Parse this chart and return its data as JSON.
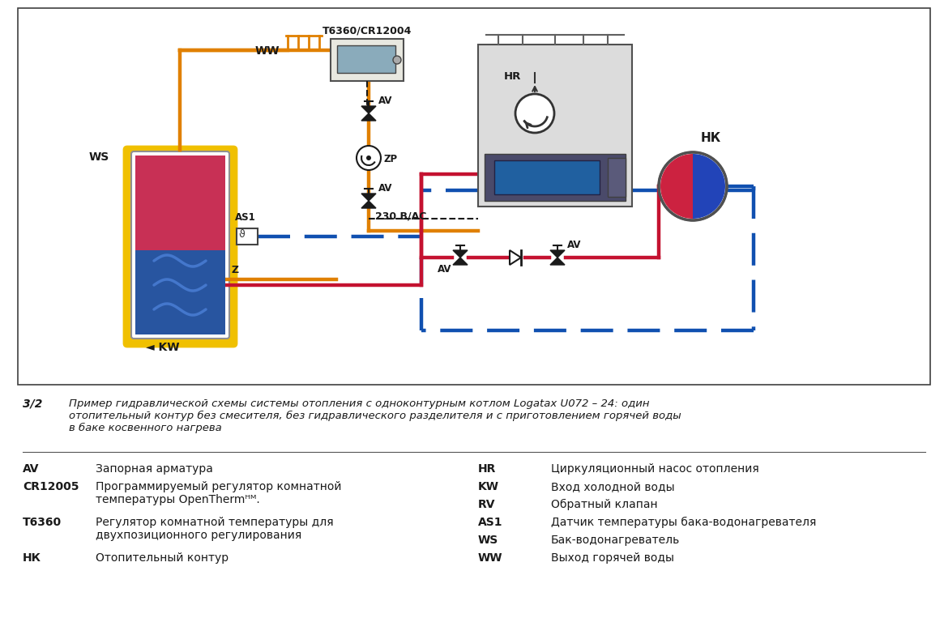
{
  "background_color": "#ffffff",
  "caption_label": "3/2",
  "caption_text": "Пример гидравлической схемы системы отопления с одноконтурным котлом Logatax U072 – 24: один\nотопительный контур без смесителя, без гидравлического разделителя и с приготовлением горячей воды\nв баке косвенного нагрева",
  "legend_left": [
    [
      "AV",
      "Запорная арматура"
    ],
    [
      "CR12005",
      "Программируемый регулятор комнатной\nтемпературы OpenThermᴴᴹ."
    ],
    [
      "T6360",
      "Регулятор комнатной температуры для\nдвухпозиционного регулирования"
    ],
    [
      "НК",
      "Отопительный контур"
    ]
  ],
  "legend_right": [
    [
      "HR",
      "Циркуляционный насос отопления"
    ],
    [
      "KW",
      "Вход холодной воды"
    ],
    [
      "RV",
      "Обратный клапан"
    ],
    [
      "AS1",
      "Датчик температуры бака-водонагревателя"
    ],
    [
      "WS",
      "Бак-водонагреватель"
    ],
    [
      "WW",
      "Выход горячей воды"
    ]
  ],
  "c_orange": "#E08000",
  "c_red": "#C41230",
  "c_blue": "#1050B0",
  "c_yellow": "#F0C000",
  "c_black": "#1a1a1a",
  "c_gray_boiler": "#D8D8D8",
  "c_gray_dark": "#606060"
}
